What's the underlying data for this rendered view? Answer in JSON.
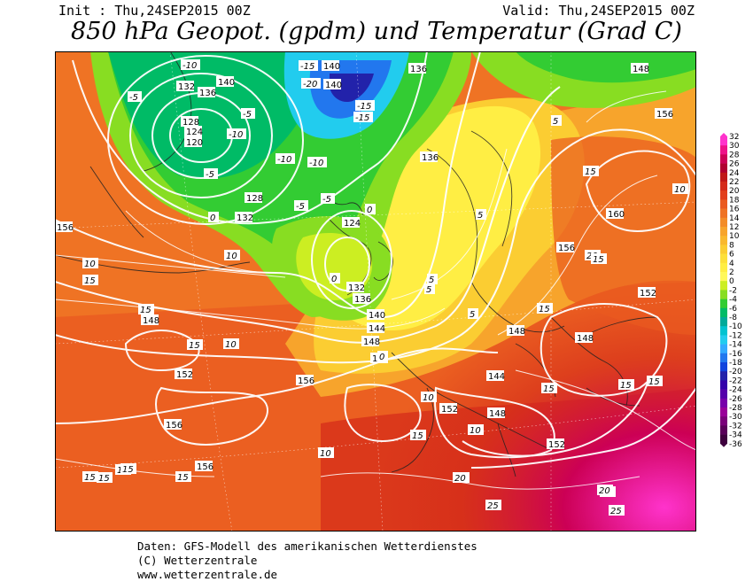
{
  "header": {
    "init": "Init : Thu,24SEP2015 00Z",
    "valid": "Valid: Thu,24SEP2015 00Z",
    "title": "850 hPa Geopot. (gpdm) und Temperatur (Grad C)"
  },
  "colorbar": {
    "labels": [
      "32",
      "30",
      "28",
      "26",
      "24",
      "22",
      "20",
      "18",
      "16",
      "14",
      "12",
      "10",
      "8",
      "6",
      "4",
      "2",
      "0",
      "-2",
      "-4",
      "-6",
      "-8",
      "-10",
      "-12",
      "-14",
      "-16",
      "-18",
      "-20",
      "-22",
      "-24",
      "-26",
      "-28",
      "-30",
      "-32",
      "-34",
      "-36"
    ],
    "colors": [
      "#ff33cc",
      "#ee1188",
      "#cc0055",
      "#b00030",
      "#c01818",
      "#d42a1a",
      "#e23e1c",
      "#ea5a20",
      "#ef7324",
      "#f38c28",
      "#f7a42c",
      "#f9b82e",
      "#fbcd32",
      "#fde03a",
      "#ffee44",
      "#fff85a",
      "#ccee22",
      "#88dd22",
      "#33cc33",
      "#00bb66",
      "#00aa99",
      "#00c3d0",
      "#22ccee",
      "#33aaff",
      "#2277ee",
      "#1144dd",
      "#2222aa",
      "#3300aa",
      "#5500aa",
      "#7700aa",
      "#990099",
      "#7a007a",
      "#5a005a",
      "#3e003e"
    ]
  },
  "map_labels": {
    "geopotential": [
      "140",
      "136",
      "148",
      "156",
      "132",
      "128",
      "124",
      "120",
      "140",
      "136",
      "128",
      "132",
      "124",
      "132",
      "136",
      "140",
      "144",
      "148",
      "152",
      "156",
      "160",
      "156",
      "152",
      "148",
      "148",
      "144",
      "148",
      "152",
      "156",
      "152",
      "156",
      "156",
      "152",
      "148",
      "140",
      "136"
    ],
    "temperature": [
      "-10",
      "-5",
      "-15",
      "-20",
      "-15",
      "-10",
      "-5",
      "0",
      "5",
      "10",
      "15",
      "20",
      "25",
      "-5",
      "-10",
      "-15",
      "-5",
      "0",
      "5",
      "10",
      "15",
      "20",
      "25",
      "15",
      "10",
      "15",
      "15",
      "10",
      "5",
      "0",
      "5",
      "10",
      "15",
      "20",
      "20",
      "15",
      "15",
      "15",
      "10",
      "15",
      "15",
      "20",
      "15",
      "15",
      "15",
      "10",
      "5",
      "0",
      "-5",
      "-10",
      "15"
    ]
  },
  "footer": {
    "line1": "Daten: GFS-Modell des amerikanischen Wetterdienstes",
    "line2": "(C) Wetterzentrale",
    "line3": "www.wetterzentrale.de"
  }
}
